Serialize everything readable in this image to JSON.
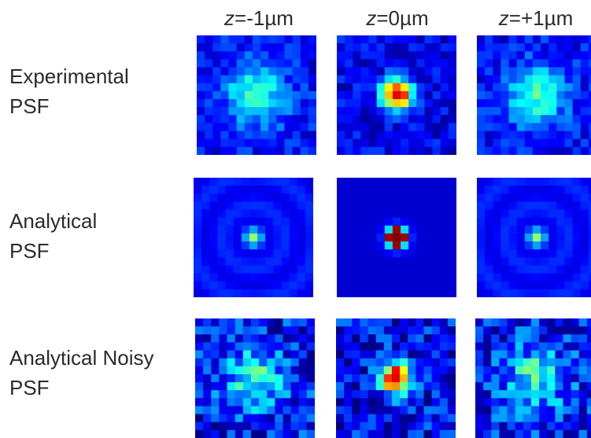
{
  "columns": [
    {
      "prefix": "z",
      "value": "=-1µm"
    },
    {
      "prefix": "z",
      "value": "=0µm"
    },
    {
      "prefix": "z",
      "value": "=+1µm"
    }
  ],
  "rows": [
    {
      "line1": "Experimental",
      "line2": "PSF"
    },
    {
      "line1": "Analytical",
      "line2": "PSF"
    },
    {
      "line1": "Analytical Noisy",
      "line2": "PSF"
    }
  ],
  "colormap": "jet",
  "grid_size": 15
}
